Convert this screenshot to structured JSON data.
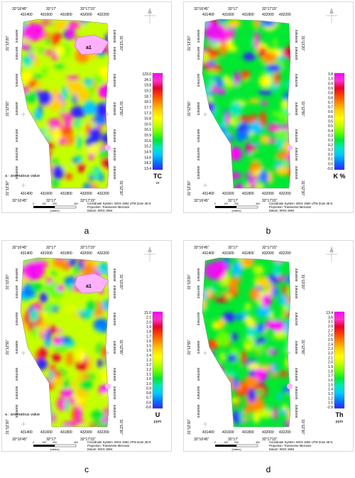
{
  "panels": [
    {
      "id": "a",
      "label": "a",
      "top_coords": [
        "32°16'45\"",
        "32°17'",
        "32°17'15\""
      ],
      "top_eastings": [
        "431400",
        "431600",
        "431800",
        "432000",
        "432200"
      ],
      "bottom_eastings": [
        "431400",
        "431600",
        "431800",
        "432000",
        "432200"
      ],
      "bottom_coords": [
        "32°16'45\"",
        "32°17'",
        "32°17'15\""
      ],
      "left_lats": [
        "31°13'20\"",
        "31°12'55\"",
        "31°12'30\""
      ],
      "northings": [
        "3454600",
        "3454400",
        "3454000",
        "3453600",
        "3453400",
        "3453200",
        "3453000"
      ],
      "right_lats": [
        "31°13'20\"",
        "31°12'55\"",
        "31°12'30\""
      ],
      "anomaly_label": "a1",
      "anomaly_note": "a : anomalous value",
      "legend_values": [
        "123.0",
        "24.1",
        "19.8",
        "19.2",
        "18.7",
        "18.1",
        "17.7",
        "17.3",
        "16.8",
        "16.5",
        "16.1",
        "15.9",
        "15.6",
        "15.2",
        "14.9",
        "14.6",
        "14.2",
        "13.4"
      ],
      "legend_title": "TC",
      "legend_unit": "ur",
      "info_lines": [
        "Coordinate System: WGS 1984 UTM Zone 36 N",
        "Projection: Transverse Mercator",
        "Datum: WGS 1984"
      ],
      "scale_label": "(meters)",
      "scale_ticks": [
        "0",
        "100",
        "200",
        "400"
      ]
    },
    {
      "id": "b",
      "label": "b",
      "top_coords": [
        "32°16'45\"",
        "32°17'",
        "32°17'15\""
      ],
      "top_eastings": [
        "431400",
        "431600",
        "431800",
        "432000",
        "432200"
      ],
      "bottom_eastings": [
        "431400",
        "431600",
        "431800",
        "432000",
        "432200"
      ],
      "bottom_coords": [
        "32°16'45\"",
        "32°17'",
        "32°17'15\""
      ],
      "left_lats": [
        "31°13'20\"",
        "31°12'55\"",
        "31°12'30\""
      ],
      "northings": [
        "3454600",
        "3454400",
        "3454200",
        "3453800",
        "3453400",
        "3453200",
        "3453000"
      ],
      "right_lats": [
        "31°13'20\"",
        "31°12'55\"",
        "31°12'30\""
      ],
      "anomaly_label": "",
      "anomaly_note": "",
      "legend_values": [
        "3.8",
        "1.0",
        "0.9",
        "0.9",
        "0.8",
        "0.8",
        "0.7",
        "0.7",
        "0.6",
        "0.6",
        "0.5",
        "0.5",
        "0.4",
        "0.3",
        "0.3",
        "0.2",
        "0.2",
        "0.1",
        "0.1",
        "0.0",
        "-0.0"
      ],
      "legend_title": "K %",
      "legend_unit": "",
      "info_lines": [
        "Coordinate System: WGS 1984 UTM Zone 36 N",
        "Projection: Transverse Mercator",
        "Datum: WGS 1984"
      ],
      "scale_label": "(meters)",
      "scale_ticks": [
        "0",
        "100",
        "200",
        "400"
      ]
    },
    {
      "id": "c",
      "label": "c",
      "top_coords": [
        "32°16'45\"",
        "32°17'",
        "32°17'15\""
      ],
      "top_eastings": [
        "431400",
        "431600",
        "431800",
        "432000",
        "432200"
      ],
      "bottom_eastings": [
        "431400",
        "431600",
        "431800",
        "432000",
        "432200"
      ],
      "bottom_coords": [
        "32°16'45\"",
        "32°17'",
        "32°17'15\""
      ],
      "left_lats": [
        "31°13'20\"",
        "31°12'55\"",
        "31°12'30\""
      ],
      "northings": [
        "3454600",
        "3454400",
        "3454000",
        "3453800",
        "3453400",
        "3453200",
        "3453000"
      ],
      "right_lats": [
        "31°13'20\"",
        "31°12'55\"",
        "31°12'30\""
      ],
      "anomaly_label": "a1",
      "anomaly_note": "a : anomalous value",
      "legend_values": [
        "21.0",
        "2.1",
        "2.0",
        "1.9",
        "1.8",
        "1.7",
        "1.6",
        "1.5",
        "1.5",
        "1.4",
        "1.3",
        "1.2",
        "1.2",
        "1.1",
        "1.0",
        "1.0",
        "0.9",
        "0.8",
        "0.7",
        "0.6",
        "-0.6"
      ],
      "legend_title": "U",
      "legend_unit": "ppm",
      "info_lines": [
        "Coordinate System: WGS 1984 UTM Zone 36 N",
        "Projection: Transverse Mercator",
        "Datum: WGS 1984"
      ],
      "scale_label": "(meters)",
      "scale_ticks": [
        "0",
        "100",
        "200",
        "400"
      ]
    },
    {
      "id": "d",
      "label": "d",
      "top_coords": [
        "32°16'45\"",
        "32°17'",
        "32°17'15\""
      ],
      "top_eastings": [
        "431400",
        "431600",
        "431800",
        "432000",
        "432200"
      ],
      "bottom_eastings": [
        "431400",
        "431600",
        "431800",
        "432000",
        "432200"
      ],
      "bottom_coords": [
        "32°16'45\"",
        "32°17'",
        "32°17'15\""
      ],
      "left_lats": [
        "31°13'20\"",
        "31°12'55\"",
        "31°12'30\""
      ],
      "northings": [
        "3454600",
        "3454400",
        "3454200",
        "3453800",
        "3453400",
        "3453200",
        "3453000"
      ],
      "right_lats": [
        "31°13'20\"",
        "31°12'55\"",
        "31°12'30\""
      ],
      "anomaly_label": "",
      "anomaly_note": "",
      "legend_values": [
        "13.4",
        "3.6",
        "3.1",
        "2.9",
        "2.7",
        "2.6",
        "2.5",
        "2.4",
        "2.3",
        "2.2",
        "2.1",
        "2.0",
        "1.9",
        "1.8",
        "1.7",
        "1.6",
        "1.5",
        "1.4",
        "1.3",
        "1.2",
        "1.0",
        "-2.9"
      ],
      "legend_title": "Th",
      "legend_unit": "ppm",
      "info_lines": [
        "Coordinate System: WGS 1984 UTM Zone 36 N",
        "Projection: Transverse Mercator",
        "Datum: WGS 1984"
      ],
      "scale_label": "(meters)",
      "scale_ticks": [
        "0",
        "100",
        "200",
        "400"
      ]
    }
  ],
  "colors": {
    "ramp": [
      "#ff00ff",
      "#ff33cc",
      "#e8002a",
      "#ff4400",
      "#ff8c00",
      "#ffd000",
      "#ffff00",
      "#c6ff00",
      "#66ff00",
      "#00e832",
      "#00e8c0",
      "#00c8ff",
      "#0077ff",
      "#3322ff"
    ],
    "marker": "#ffb0ff",
    "panel_border": "#d9d9d9"
  }
}
